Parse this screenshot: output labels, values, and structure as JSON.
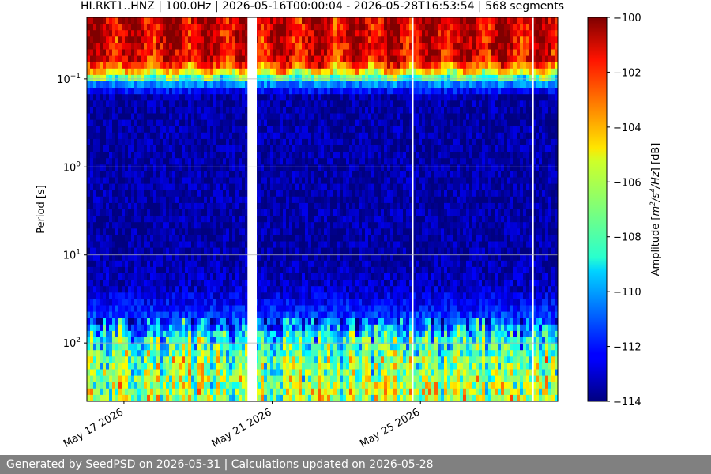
{
  "chart_data": {
    "type": "heatmap",
    "title": "HI.RKT1..HNZ | 100.0Hz | 2026-05-16T00:00:04 - 2026-05-28T16:53:54 | 568 segments",
    "xlabel": "",
    "ylabel": "Period [s]",
    "x_range": [
      "2026-05-16T00:00:04",
      "2026-05-28T16:53:54"
    ],
    "x_ticks": [
      "May 17 2026",
      "May 21 2026",
      "May 25 2026"
    ],
    "x_tick_dates": [
      "2026-05-17",
      "2026-05-21",
      "2026-05-25"
    ],
    "y_scale": "log",
    "y_inverted": true,
    "y_range": [
      0.02,
      460
    ],
    "y_ticks": [
      0.1,
      1,
      10,
      100
    ],
    "y_tick_labels": [
      [
        "10",
        "−1"
      ],
      [
        "10",
        "0"
      ],
      [
        "10",
        "1"
      ],
      [
        "10",
        "2"
      ]
    ],
    "grid": true,
    "colorbar": {
      "label_parts": [
        "Amplitude [",
        "m",
        "2",
        "/",
        "s",
        "4",
        "/",
        "Hz",
        "] [dB]"
      ],
      "range": [
        -114,
        -100
      ],
      "ticks": [
        "−114",
        "−112",
        "−110",
        "−108",
        "−106",
        "−104",
        "−102",
        "−100"
      ],
      "colormap": "jet"
    },
    "data_gaps": [
      [
        "2026-05-20T08:00:00",
        "2026-05-20T14:00:00"
      ],
      [
        "2026-05-24T18:30:00",
        "2026-05-24T19:00:00"
      ],
      [
        "2026-05-28T00:20:00",
        "2026-05-28T00:40:00"
      ]
    ],
    "band_levels_db": [
      {
        "period_range": [
          0.02,
          0.08
        ],
        "typical_db": -102
      },
      {
        "period_range": [
          0.08,
          0.12
        ],
        "typical_db": -108
      },
      {
        "period_range": [
          0.12,
          20
        ],
        "typical_db": -113.5
      },
      {
        "period_range": [
          20,
          80
        ],
        "typical_db": -112
      },
      {
        "period_range": [
          80,
          460
        ],
        "typical_db": -107
      }
    ]
  },
  "footer": {
    "text": "Generated by SeedPSD on 2026-05-31 | Calculations updated on 2026-05-28"
  }
}
